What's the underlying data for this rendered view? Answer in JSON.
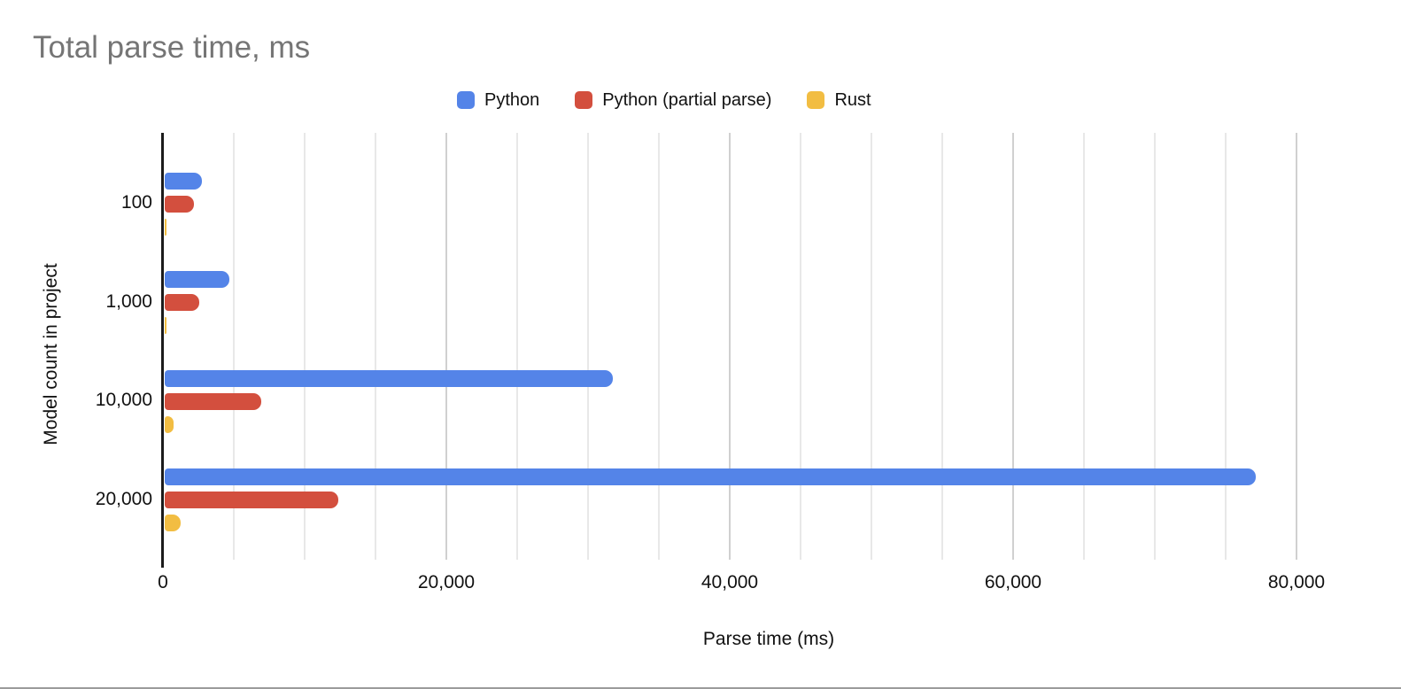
{
  "chart_data": {
    "type": "bar",
    "orientation": "horizontal",
    "title": "Total parse time, ms",
    "xlabel": "Parse time (ms)",
    "ylabel": "Model count in project",
    "categories": [
      "100",
      "1,000",
      "10,000",
      "20,000"
    ],
    "series": [
      {
        "name": "Python",
        "color": "#5484E8",
        "values": [
          2600,
          4550,
          31600,
          77000
        ]
      },
      {
        "name": "Python (partial parse)",
        "color": "#D34F3E",
        "values": [
          2050,
          2450,
          6800,
          12250
        ]
      },
      {
        "name": "Rust",
        "color": "#F2BD42",
        "values": [
          100,
          150,
          650,
          1100
        ]
      }
    ],
    "xlim": [
      0,
      85500
    ],
    "xticks": [
      {
        "value": 0,
        "label": "0"
      },
      {
        "value": 20000,
        "label": "20,000"
      },
      {
        "value": 40000,
        "label": "40,000"
      },
      {
        "value": 60000,
        "label": "60,000"
      },
      {
        "value": 80000,
        "label": "80,000"
      }
    ],
    "gridline_interval": 5000,
    "grid": true,
    "legend_position": "top",
    "colors": {
      "title_text": "#757575",
      "axis_line": "#1b1b1b",
      "grid_major": "#d0d0d0",
      "grid_minor": "#e8e8e8",
      "label_text": "#111111",
      "page_bottom_border": "#9b9b9b"
    }
  }
}
